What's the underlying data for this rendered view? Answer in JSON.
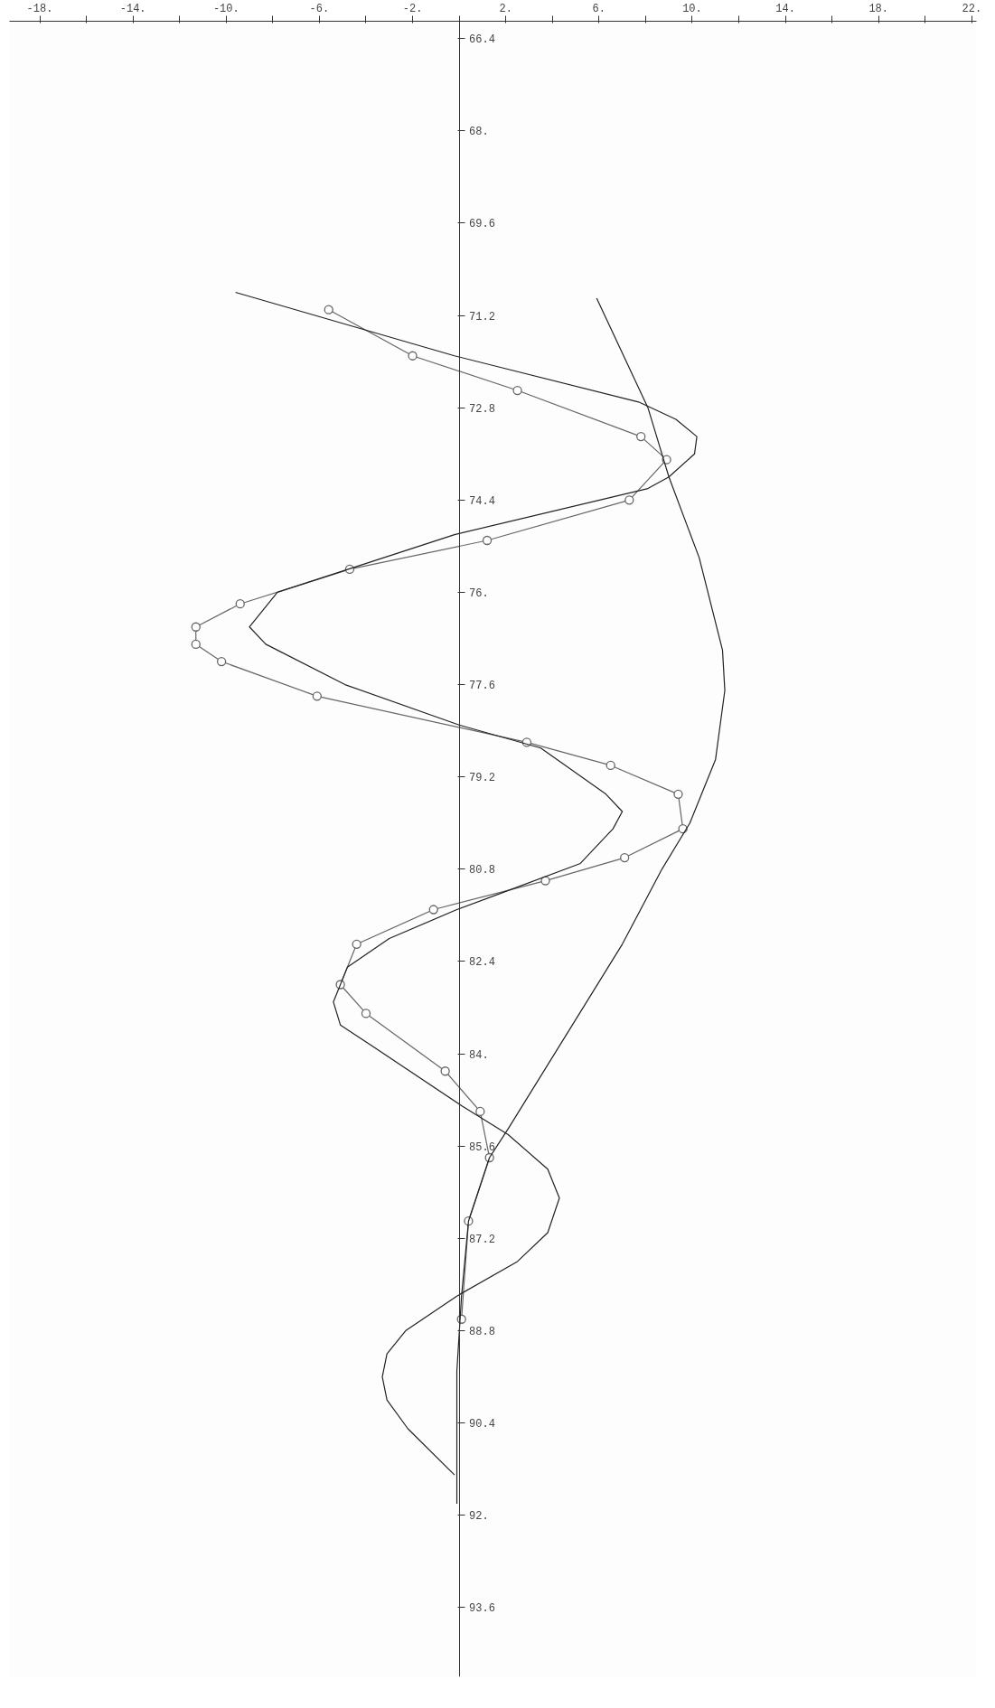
{
  "chart_data": {
    "type": "line",
    "xlim": [
      -19.3,
      22.2
    ],
    "ylim": [
      94.8,
      66.1
    ],
    "xticks": [
      {
        "value": -18,
        "label": "-18."
      },
      {
        "value": -16,
        "label": null
      },
      {
        "value": -14,
        "label": "-14."
      },
      {
        "value": -12,
        "label": null
      },
      {
        "value": -10,
        "label": "-10."
      },
      {
        "value": -8,
        "label": null
      },
      {
        "value": -6,
        "label": "-6."
      },
      {
        "value": -4,
        "label": null
      },
      {
        "value": -2,
        "label": "-2."
      },
      {
        "value": 0,
        "label": null
      },
      {
        "value": 2,
        "label": "2."
      },
      {
        "value": 4,
        "label": null
      },
      {
        "value": 6,
        "label": "6."
      },
      {
        "value": 8,
        "label": null
      },
      {
        "value": 10,
        "label": "10."
      },
      {
        "value": 12,
        "label": null
      },
      {
        "value": 14,
        "label": "14."
      },
      {
        "value": 16,
        "label": null
      },
      {
        "value": 18,
        "label": "18."
      },
      {
        "value": 20,
        "label": null
      },
      {
        "value": 22,
        "label": "22."
      }
    ],
    "yticks": [
      66.4,
      {
        "value": 68,
        "label": "68."
      },
      69.6,
      71.2,
      72.8,
      74.4,
      {
        "value": 76,
        "label": "76."
      },
      77.6,
      79.2,
      80.8,
      82.4,
      {
        "value": 84,
        "label": "84."
      },
      85.6,
      87.2,
      88.8,
      90.4,
      {
        "value": 92,
        "label": "92."
      },
      93.6
    ],
    "grid": false,
    "line_style": "solid",
    "series": [
      {
        "color": "#666666",
        "marker": "circle",
        "x": [
          -5.6,
          -2.0,
          2.5,
          7.8,
          8.9,
          7.3,
          1.2,
          -4.7,
          -9.4,
          -11.3,
          -11.3,
          -10.2,
          -6.1,
          2.9,
          6.5,
          9.4,
          9.6,
          7.1,
          3.7,
          -1.1,
          -4.4,
          -5.1,
          -4.0,
          -0.6,
          0.9,
          1.3,
          0.4,
          0.1
        ],
        "values": [
          71.1,
          71.9,
          72.5,
          73.3,
          73.7,
          74.4,
          75.1,
          75.6,
          76.2,
          76.6,
          76.9,
          77.2,
          77.8,
          78.6,
          79.0,
          79.5,
          80.1,
          80.6,
          81.0,
          81.5,
          82.1,
          82.8,
          83.3,
          84.3,
          85.0,
          85.8,
          86.9,
          88.6
        ]
      },
      {
        "color": "#222222",
        "marker": "none",
        "x": [
          -9.6,
          -0.2,
          7.7,
          9.3,
          10.2,
          10.1,
          9.0,
          8.1,
          -0.2,
          -7.8,
          -9.0,
          -8.3,
          -4.9,
          0.0,
          3.5,
          6.3,
          7.0,
          6.6,
          5.2,
          1.9,
          -0.1,
          -3.0,
          -4.8,
          -5.4,
          -5.1,
          -3.6,
          0.1,
          2.1,
          3.8,
          4.3,
          3.8,
          2.5,
          -0.1,
          -2.3,
          -3.1,
          -3.3,
          -3.1,
          -2.2,
          -0.2
        ],
        "values": [
          70.8,
          71.9,
          72.7,
          73.0,
          73.3,
          73.6,
          74.0,
          74.2,
          75.0,
          76.0,
          76.6,
          76.9,
          77.6,
          78.3,
          78.7,
          79.5,
          79.8,
          80.1,
          80.7,
          81.2,
          81.5,
          82.0,
          82.5,
          83.1,
          83.5,
          83.9,
          84.9,
          85.4,
          86.0,
          86.5,
          87.1,
          87.6,
          88.2,
          88.8,
          89.2,
          89.6,
          90.0,
          90.5,
          91.3
        ]
      },
      {
        "color": "#222222",
        "marker": "none",
        "x": [
          5.9,
          8.1,
          9.0,
          10.3,
          11.3,
          11.4,
          11.0,
          9.9,
          8.7,
          7.0,
          2.1,
          1.3,
          0.4,
          0.1,
          -0.1,
          -0.1
        ],
        "values": [
          70.9,
          72.8,
          74.0,
          75.4,
          77.0,
          77.7,
          78.9,
          80.0,
          80.8,
          82.1,
          85.3,
          85.8,
          86.9,
          88.2,
          89.5,
          91.8
        ]
      }
    ]
  }
}
